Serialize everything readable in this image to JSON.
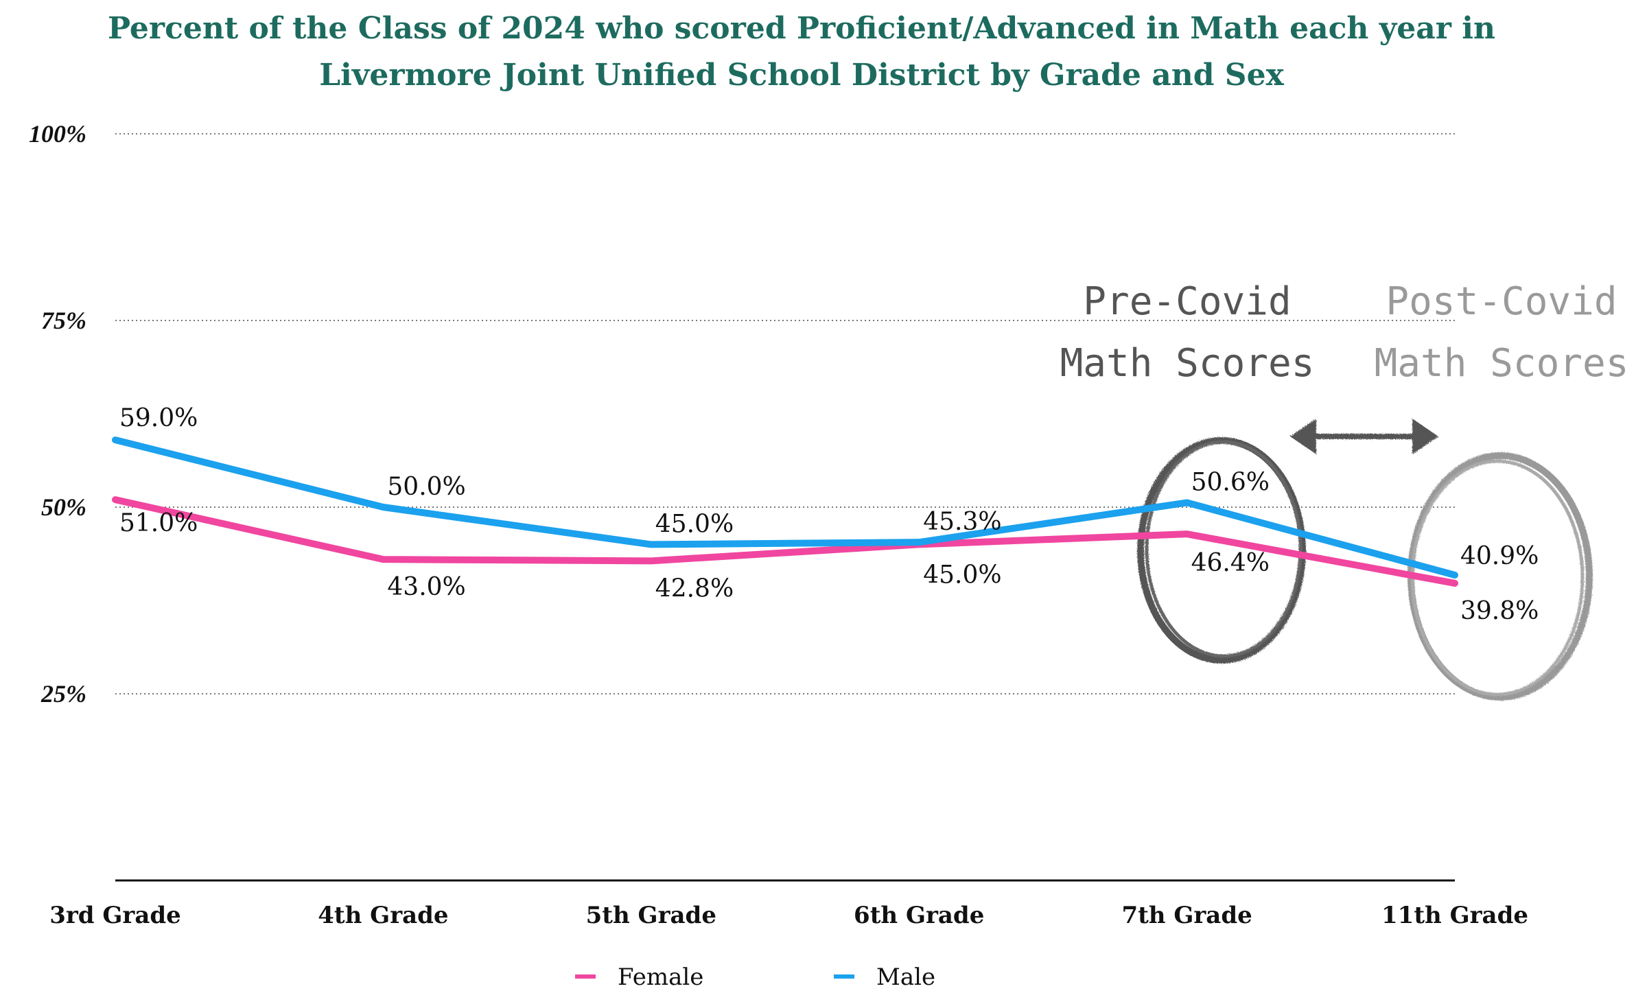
{
  "chart_data": {
    "type": "line",
    "title": "Percent of the Class of 2024 who scored Proficient/Advanced in Math each year in Livermore Joint Unified School District by Grade and Sex",
    "title_lines": [
      "Percent of the Class of 2024 who scored Proficient/Advanced in Math each year in",
      "Livermore Joint Unified School District by Grade and Sex"
    ],
    "title_color": "#1d6b5f",
    "categories": [
      "3rd Grade",
      "4th Grade",
      "5th Grade",
      "6th Grade",
      "7th Grade",
      "11th Grade"
    ],
    "series": [
      {
        "name": "Female",
        "color": "#f0469f",
        "values": [
          51.0,
          43.0,
          42.8,
          45.0,
          46.4,
          39.8
        ],
        "labels": [
          "51.0%",
          "43.0%",
          "42.8%",
          "45.0%",
          "46.4%",
          "39.8%"
        ]
      },
      {
        "name": "Male",
        "color": "#1ba1ee",
        "values": [
          59.0,
          50.0,
          45.0,
          45.3,
          50.6,
          40.9
        ],
        "labels": [
          "59.0%",
          "50.0%",
          "45.0%",
          "45.3%",
          "50.6%",
          "40.9%"
        ]
      }
    ],
    "ylim": [
      0,
      100
    ],
    "yticks": [
      {
        "value": 25,
        "label": "25%"
      },
      {
        "value": 50,
        "label": "50%"
      },
      {
        "value": 75,
        "label": "75%"
      },
      {
        "value": 100,
        "label": "100%"
      }
    ],
    "grid": true,
    "legend_position": "bottom",
    "annotations": {
      "pre_covid": {
        "line1": "Pre-Covid",
        "line2": "Math Scores",
        "color": "#555555"
      },
      "post_covid": {
        "line1": "Post-Covid",
        "line2": "Math Scores",
        "color": "#9a9a9a"
      }
    }
  }
}
